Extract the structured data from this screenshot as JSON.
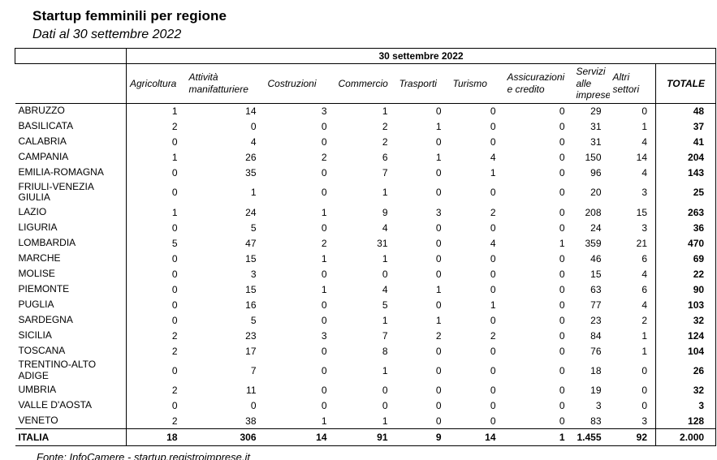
{
  "title": "Startup femminili per regione",
  "subtitle": "Dati al 30 settembre 2022",
  "table": {
    "period_header": "30 settembre 2022",
    "columns": [
      "Agricoltura",
      "Attività manifatturiere",
      "Costruzioni",
      "Commercio",
      "Trasporti",
      "Turismo",
      "Assicurazioni e credito",
      "Servizi alle imprese",
      "Altri settori",
      "TOTALE"
    ],
    "rows": [
      {
        "region": "ABRUZZO",
        "values": [
          "1",
          "14",
          "3",
          "1",
          "0",
          "0",
          "0",
          "29",
          "0",
          "48"
        ]
      },
      {
        "region": "BASILICATA",
        "values": [
          "2",
          "0",
          "0",
          "2",
          "1",
          "0",
          "0",
          "31",
          "1",
          "37"
        ]
      },
      {
        "region": "CALABRIA",
        "values": [
          "0",
          "4",
          "0",
          "2",
          "0",
          "0",
          "0",
          "31",
          "4",
          "41"
        ]
      },
      {
        "region": "CAMPANIA",
        "values": [
          "1",
          "26",
          "2",
          "6",
          "1",
          "4",
          "0",
          "150",
          "14",
          "204"
        ]
      },
      {
        "region": "EMILIA-ROMAGNA",
        "values": [
          "0",
          "35",
          "0",
          "7",
          "0",
          "1",
          "0",
          "96",
          "4",
          "143"
        ]
      },
      {
        "region": "FRIULI-VENEZIA GIULIA",
        "values": [
          "0",
          "1",
          "0",
          "1",
          "0",
          "0",
          "0",
          "20",
          "3",
          "25"
        ]
      },
      {
        "region": "LAZIO",
        "values": [
          "1",
          "24",
          "1",
          "9",
          "3",
          "2",
          "0",
          "208",
          "15",
          "263"
        ]
      },
      {
        "region": "LIGURIA",
        "values": [
          "0",
          "5",
          "0",
          "4",
          "0",
          "0",
          "0",
          "24",
          "3",
          "36"
        ]
      },
      {
        "region": "LOMBARDIA",
        "values": [
          "5",
          "47",
          "2",
          "31",
          "0",
          "4",
          "1",
          "359",
          "21",
          "470"
        ]
      },
      {
        "region": "MARCHE",
        "values": [
          "0",
          "15",
          "1",
          "1",
          "0",
          "0",
          "0",
          "46",
          "6",
          "69"
        ]
      },
      {
        "region": "MOLISE",
        "values": [
          "0",
          "3",
          "0",
          "0",
          "0",
          "0",
          "0",
          "15",
          "4",
          "22"
        ]
      },
      {
        "region": "PIEMONTE",
        "values": [
          "0",
          "15",
          "1",
          "4",
          "1",
          "0",
          "0",
          "63",
          "6",
          "90"
        ]
      },
      {
        "region": "PUGLIA",
        "values": [
          "0",
          "16",
          "0",
          "5",
          "0",
          "1",
          "0",
          "77",
          "4",
          "103"
        ]
      },
      {
        "region": "SARDEGNA",
        "values": [
          "0",
          "5",
          "0",
          "1",
          "1",
          "0",
          "0",
          "23",
          "2",
          "32"
        ]
      },
      {
        "region": "SICILIA",
        "values": [
          "2",
          "23",
          "3",
          "7",
          "2",
          "2",
          "0",
          "84",
          "1",
          "124"
        ]
      },
      {
        "region": "TOSCANA",
        "values": [
          "2",
          "17",
          "0",
          "8",
          "0",
          "0",
          "0",
          "76",
          "1",
          "104"
        ]
      },
      {
        "region": "TRENTINO-ALTO ADIGE",
        "values": [
          "0",
          "7",
          "0",
          "1",
          "0",
          "0",
          "0",
          "18",
          "0",
          "26"
        ]
      },
      {
        "region": "UMBRIA",
        "values": [
          "2",
          "11",
          "0",
          "0",
          "0",
          "0",
          "0",
          "19",
          "0",
          "32"
        ]
      },
      {
        "region": "VALLE D'AOSTA",
        "values": [
          "0",
          "0",
          "0",
          "0",
          "0",
          "0",
          "0",
          "3",
          "0",
          "3"
        ]
      },
      {
        "region": "VENETO",
        "values": [
          "2",
          "38",
          "1",
          "1",
          "0",
          "0",
          "0",
          "83",
          "3",
          "128"
        ]
      }
    ],
    "total_row": {
      "region": "ITALIA",
      "values": [
        "18",
        "306",
        "14",
        "91",
        "9",
        "14",
        "1",
        "1.455",
        "92",
        "2.000"
      ]
    }
  },
  "footer": "Fonte: InfoCamere - startup.registroimprese.it"
}
